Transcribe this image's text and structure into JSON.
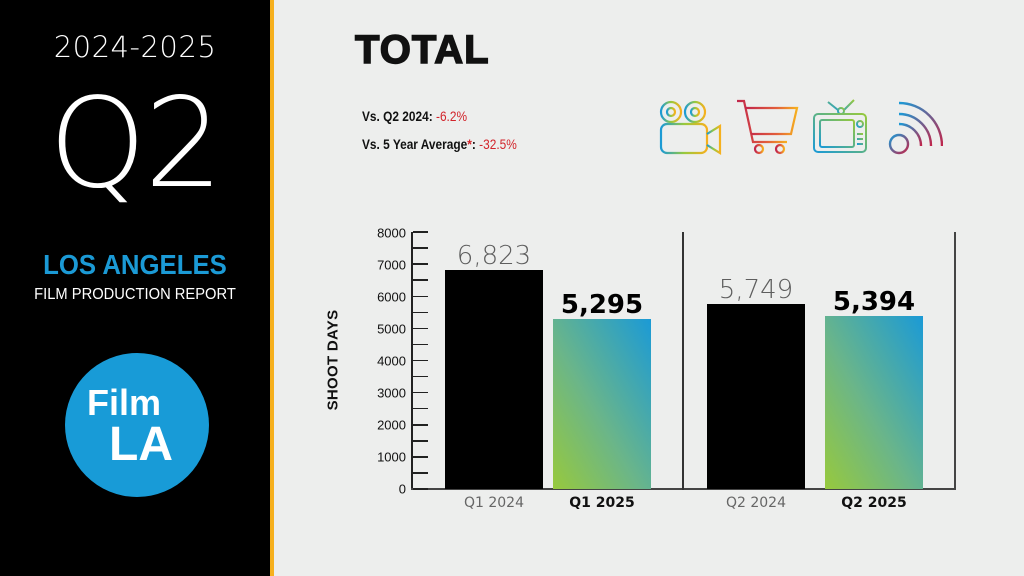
{
  "sidebar": {
    "years": "2024-2025",
    "quarter": "Q2",
    "city": "LOS ANGELES",
    "report": "FILM PRODUCTION REPORT",
    "logo": {
      "line1": "Film",
      "line2": "LA",
      "color": "#189bd7"
    },
    "accent_color": "#f6b01e"
  },
  "header": {
    "title": "TOTAL",
    "comparisons": [
      {
        "label": "Vs. Q2 2024:",
        "star": "",
        "value": "-6.2%"
      },
      {
        "label": "Vs. 5 Year Average",
        "star": "*",
        "colon": ":",
        "value": "-32.5%"
      }
    ],
    "icons": [
      "film-camera-icon",
      "shopping-cart-icon",
      "television-icon",
      "broadcast-signal-icon"
    ]
  },
  "chart_data": {
    "type": "bar",
    "title": "TOTAL",
    "xlabel": "",
    "ylabel": "SHOOT DAYS",
    "ylim": [
      0,
      8000
    ],
    "yticks": [
      0,
      1000,
      2000,
      3000,
      4000,
      5000,
      6000,
      7000,
      8000
    ],
    "categories": [
      "Q1 2024",
      "Q1 2025",
      "Q2 2024",
      "Q2 2025"
    ],
    "values": [
      6823,
      5295,
      5749,
      5394
    ],
    "value_labels": [
      "6,823",
      "5,295",
      "5,749",
      "5,394"
    ],
    "groups": [
      {
        "name": "Q1",
        "bars": [
          {
            "label": "Q1 2024",
            "value": 6823,
            "display": "6,823",
            "style": "prior"
          },
          {
            "label": "Q1 2025",
            "value": 5295,
            "display": "5,295",
            "style": "current"
          }
        ]
      },
      {
        "name": "Q2",
        "bars": [
          {
            "label": "Q2 2024",
            "value": 5749,
            "display": "5,749",
            "style": "prior"
          },
          {
            "label": "Q2 2025",
            "value": 5394,
            "display": "5,394",
            "style": "current"
          }
        ]
      }
    ],
    "grid": false,
    "legend": null,
    "colors": {
      "prior": "#000000",
      "current_gradient": [
        "#97c93d",
        "#1b9ad6"
      ]
    }
  }
}
